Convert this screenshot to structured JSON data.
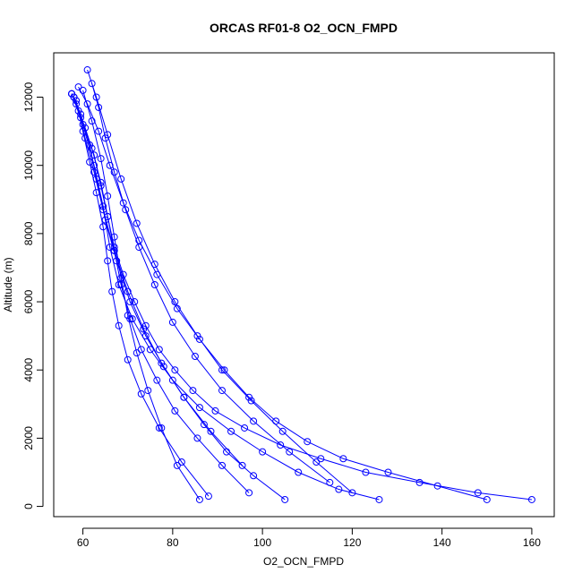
{
  "chart_data": {
    "type": "line",
    "title": "ORCAS RF01-8 O2_OCN_FMPD",
    "xlabel": "O2_OCN_FMPD",
    "ylabel": "Altitude (m)",
    "xlim": [
      53.5,
      165
    ],
    "ylim": [
      -300,
      13300
    ],
    "x_ticks": [
      60,
      80,
      100,
      120,
      140,
      160
    ],
    "y_ticks": [
      0,
      2000,
      4000,
      6000,
      8000,
      10000,
      12000
    ],
    "grid": false,
    "legend": "none",
    "markers": "open-circle",
    "series_color": "#0000ff",
    "series": [
      {
        "x": [
          57.5,
          58.5,
          60.5,
          62.5,
          64.0,
          65.5,
          67.0,
          69.0,
          71.5,
          74.0,
          77.0,
          80.5,
          84.5,
          89.5,
          96.0,
          104.0,
          113.0,
          123.0,
          135.0,
          148.0,
          160.0
        ],
        "y": [
          12100,
          11800,
          11100,
          10300,
          9400,
          8500,
          7600,
          6800,
          6000,
          5300,
          4600,
          4000,
          3400,
          2800,
          2300,
          1800,
          1400,
          1000,
          700,
          400,
          200
        ]
      },
      {
        "x": [
          58.0,
          59.5,
          61.5,
          63.0,
          65.0,
          67.5,
          70.5,
          74.0,
          78.0,
          82.5,
          87.0,
          92.0,
          98.0,
          105.0
        ],
        "y": [
          12000,
          11500,
          10600,
          9600,
          8400,
          7200,
          6000,
          5000,
          4100,
          3200,
          2400,
          1600,
          900,
          200
        ]
      },
      {
        "x": [
          57.5,
          60.0,
          62.5,
          64.5,
          66.0,
          68.0,
          71.0,
          75.0,
          80.0,
          86.0,
          93.0,
          100.0,
          108.0,
          117.0,
          126.0
        ],
        "y": [
          12100,
          11200,
          10000,
          8800,
          7600,
          6500,
          5500,
          4600,
          3700,
          2900,
          2200,
          1600,
          1000,
          500,
          200
        ]
      },
      {
        "x": [
          59.0,
          61.0,
          63.5,
          66.0,
          69.0,
          72.5,
          76.5,
          81.0,
          86.0,
          91.5,
          97.0,
          103.0,
          110.0,
          118.0,
          128.0,
          139.0,
          150.0
        ],
        "y": [
          12300,
          11800,
          11000,
          10000,
          8900,
          7800,
          6800,
          5800,
          4900,
          4000,
          3200,
          2500,
          1900,
          1400,
          1000,
          600,
          200
        ]
      },
      {
        "x": [
          60.0,
          62.0,
          64.0,
          65.5,
          67.0,
          68.5,
          70.0,
          72.0,
          74.5,
          77.5,
          81.0,
          86.0
        ],
        "y": [
          12200,
          11300,
          10200,
          9100,
          7900,
          6700,
          5600,
          4500,
          3400,
          2300,
          1200,
          200
        ]
      },
      {
        "x": [
          61.0,
          63.0,
          65.5,
          68.5,
          72.0,
          76.0,
          80.5,
          85.5,
          91.0,
          97.5,
          104.5,
          112.0,
          120.0
        ],
        "y": [
          12800,
          12000,
          10900,
          9600,
          8300,
          7100,
          6000,
          5000,
          4000,
          3100,
          2200,
          1300,
          400
        ]
      },
      {
        "x": [
          58.5,
          60.0,
          61.5,
          63.0,
          64.5,
          65.5,
          66.5,
          68.0,
          70.0,
          73.0,
          77.0,
          82.0,
          88.0
        ],
        "y": [
          11900,
          11000,
          10100,
          9200,
          8200,
          7200,
          6300,
          5300,
          4300,
          3300,
          2300,
          1300,
          300
        ]
      },
      {
        "x": [
          57.5,
          59.0,
          60.5,
          62.5,
          64.5,
          67.0,
          70.0,
          73.5,
          77.5,
          82.5,
          88.5,
          95.5
        ],
        "y": [
          12100,
          11600,
          10800,
          9800,
          8700,
          7500,
          6300,
          5200,
          4200,
          3200,
          2200,
          1200
        ]
      },
      {
        "x": [
          62.0,
          63.5,
          65.0,
          67.0,
          69.5,
          72.5,
          76.0,
          80.0,
          85.0,
          91.0,
          98.0,
          106.0,
          115.0
        ],
        "y": [
          12400,
          11700,
          10800,
          9800,
          8700,
          7600,
          6500,
          5400,
          4400,
          3400,
          2500,
          1600,
          700
        ]
      },
      {
        "x": [
          58.0,
          59.5,
          62.0,
          64.0,
          65.5,
          67.0,
          68.5,
          70.5,
          73.0,
          76.5,
          80.5,
          85.5,
          91.0,
          97.0
        ],
        "y": [
          12000,
          11400,
          10500,
          9500,
          8500,
          7500,
          6500,
          5500,
          4600,
          3700,
          2800,
          2000,
          1200,
          400
        ]
      }
    ]
  }
}
